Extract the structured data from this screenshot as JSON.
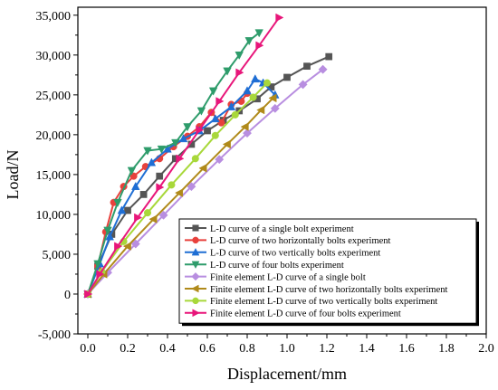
{
  "chart_data": {
    "type": "line",
    "xlabel": "Displacement/mm",
    "ylabel": "Load/N",
    "xlim": [
      -0.05,
      2.0
    ],
    "ylim": [
      -5000,
      36000
    ],
    "x_ticks": [
      "0.0",
      "0.2",
      "0.4",
      "0.6",
      "0.8",
      "1.0",
      "1.2",
      "1.4",
      "1.6",
      "1.8",
      "2.0"
    ],
    "x_tick_values": [
      0.0,
      0.2,
      0.4,
      0.6,
      0.8,
      1.0,
      1.2,
      1.4,
      1.6,
      1.8,
      2.0
    ],
    "y_ticks": [
      "-5,000",
      "0",
      "5,000",
      "10,000",
      "15,000",
      "20,000",
      "25,000",
      "30,000",
      "35,000"
    ],
    "y_tick_values": [
      -5000,
      0,
      5000,
      10000,
      15000,
      20000,
      25000,
      30000,
      35000
    ],
    "grid": false,
    "legend_position": "bottom-right",
    "series": [
      {
        "name": "L-D curve of a single bolt experiment",
        "color": "#555555",
        "marker": "square",
        "x": [
          0,
          0.05,
          0.12,
          0.2,
          0.28,
          0.36,
          0.44,
          0.52,
          0.6,
          0.68,
          0.76,
          0.85,
          0.92,
          1.0,
          1.1,
          1.21
        ],
        "y": [
          0,
          3500,
          7500,
          10500,
          12500,
          14800,
          17000,
          18800,
          20500,
          21800,
          23000,
          24500,
          26000,
          27200,
          28600,
          29800
        ]
      },
      {
        "name": "L-D curve of two horizontally bolts experiment",
        "color": "#e8413c",
        "marker": "circle",
        "x": [
          0,
          0.05,
          0.09,
          0.13,
          0.18,
          0.23,
          0.29,
          0.36,
          0.43,
          0.5,
          0.56,
          0.62,
          0.67,
          0.72,
          0.77,
          0.8
        ],
        "y": [
          0,
          3500,
          7800,
          11500,
          13500,
          14800,
          16000,
          17000,
          18500,
          19800,
          21000,
          22800,
          21500,
          23800,
          24200,
          25200
        ]
      },
      {
        "name": "L-D curve of two vertically bolts experiment",
        "color": "#1f6ed4",
        "marker": "triangle-up",
        "x": [
          0,
          0.06,
          0.11,
          0.17,
          0.24,
          0.32,
          0.4,
          0.48,
          0.56,
          0.64,
          0.72,
          0.8,
          0.84,
          0.88,
          0.94
        ],
        "y": [
          0,
          3800,
          7200,
          10500,
          13500,
          16500,
          18200,
          19500,
          20500,
          22000,
          23500,
          25500,
          27000,
          26500,
          25000
        ]
      },
      {
        "name": "L-D curve of four bolts experiment",
        "color": "#2e9c6b",
        "marker": "triangle-down",
        "x": [
          0,
          0.05,
          0.1,
          0.15,
          0.22,
          0.3,
          0.37,
          0.44,
          0.5,
          0.57,
          0.63,
          0.7,
          0.76,
          0.81,
          0.86
        ],
        "y": [
          0,
          3800,
          8000,
          11500,
          15500,
          18000,
          18200,
          19000,
          21000,
          23000,
          25500,
          28000,
          30000,
          31800,
          32800
        ]
      },
      {
        "name": "Finite element L-D curve of a single bolt",
        "color": "#b88ee0",
        "marker": "diamond",
        "x": [
          0,
          0.1,
          0.24,
          0.38,
          0.52,
          0.66,
          0.8,
          0.94,
          1.08,
          1.18
        ],
        "y": [
          0,
          2700,
          6300,
          9900,
          13500,
          16900,
          20200,
          23300,
          26300,
          28200
        ]
      },
      {
        "name": "Finite element L-D curve of two horizontally bolts experiment",
        "color": "#b08a1a",
        "marker": "triangle-left",
        "x": [
          0,
          0.08,
          0.2,
          0.33,
          0.46,
          0.58,
          0.7,
          0.79,
          0.87,
          0.93
        ],
        "y": [
          0,
          2500,
          6000,
          9400,
          12700,
          15800,
          18800,
          21000,
          23100,
          24600
        ]
      },
      {
        "name": "Finite element L-D curve of two vertically bolts experiment",
        "color": "#a8d83a",
        "marker": "circle",
        "x": [
          0,
          0.07,
          0.18,
          0.3,
          0.42,
          0.54,
          0.64,
          0.74,
          0.83,
          0.9
        ],
        "y": [
          0,
          2800,
          6600,
          10200,
          13700,
          17000,
          19900,
          22500,
          24700,
          26500
        ]
      },
      {
        "name": "Finite element L-D curve of four bolts experiment",
        "color": "#e8167a",
        "marker": "triangle-right",
        "x": [
          0,
          0.06,
          0.15,
          0.25,
          0.36,
          0.46,
          0.56,
          0.66,
          0.76,
          0.86,
          0.96
        ],
        "y": [
          0,
          2500,
          6000,
          9600,
          13400,
          17000,
          20600,
          24200,
          27800,
          31200,
          34700
        ]
      }
    ]
  }
}
